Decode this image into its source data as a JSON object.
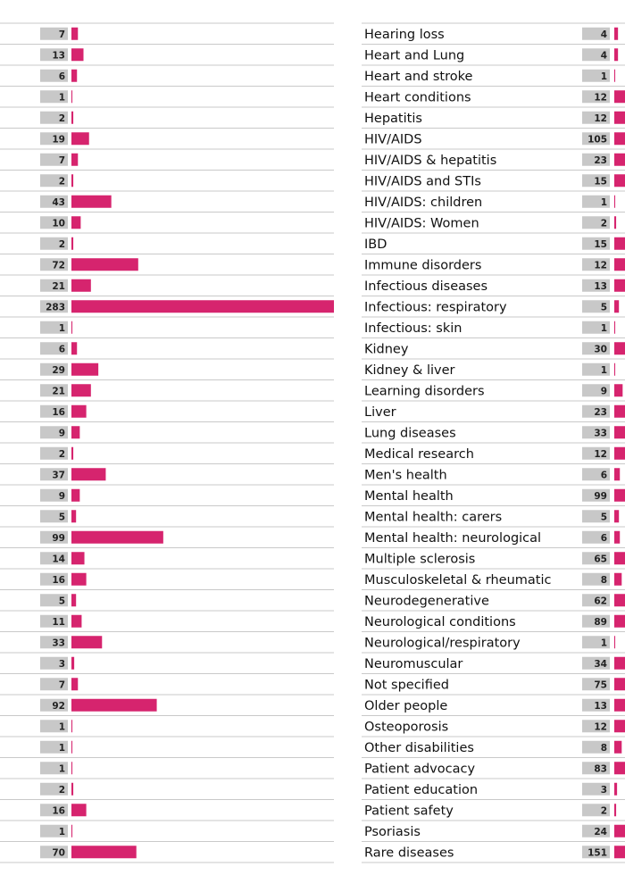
{
  "chart_data": [
    {
      "type": "bar",
      "orientation": "horizontal",
      "color": "#d6246e",
      "categories": [
        null,
        null,
        null,
        null,
        null,
        null,
        null,
        null,
        null,
        null,
        null,
        null,
        null,
        null,
        null,
        null,
        null,
        null,
        null,
        null,
        null,
        null,
        null,
        null,
        null,
        null,
        null,
        null,
        null,
        null,
        null,
        null,
        null,
        null,
        null,
        null,
        null,
        null,
        null,
        null
      ],
      "values": [
        7,
        13,
        6,
        1,
        2,
        19,
        7,
        2,
        43,
        10,
        2,
        72,
        21,
        283,
        1,
        6,
        29,
        21,
        16,
        9,
        2,
        37,
        9,
        5,
        99,
        14,
        16,
        5,
        11,
        33,
        3,
        7,
        92,
        1,
        1,
        1,
        2,
        16,
        1,
        70
      ],
      "xlim": [
        0,
        283
      ]
    },
    {
      "type": "bar",
      "orientation": "horizontal",
      "color": "#d6246e",
      "categories": [
        "Hearing loss",
        "Heart and Lung",
        "Heart and stroke",
        "Heart conditions",
        "Hepatitis",
        "HIV/AIDS",
        "HIV/AIDS & hepatitis",
        "HIV/AIDS and STIs",
        "HIV/AIDS: children",
        "HIV/AIDS: Women",
        "IBD",
        "Immune disorders",
        "Infectious diseases",
        "Infectious: respiratory",
        "Infectious: skin",
        "Kidney",
        "Kidney & liver",
        "Learning disorders",
        "Liver",
        "Lung diseases",
        "Medical research",
        "Men's health",
        "Mental health",
        "Mental health: carers",
        "Mental health: neurological",
        "Multiple sclerosis",
        "Musculoskeletal & rheumatic",
        "Neurodegenerative",
        "Neurological conditions",
        "Neurological/respiratory",
        "Neuromuscular",
        "Not specified",
        "Older people",
        "Osteoporosis",
        "Other disabilities",
        "Patient advocacy",
        "Patient education",
        "Patient safety",
        "Psoriasis",
        "Rare diseases"
      ],
      "values": [
        4,
        4,
        1,
        12,
        12,
        105,
        23,
        15,
        1,
        2,
        15,
        12,
        13,
        5,
        1,
        30,
        1,
        9,
        23,
        33,
        12,
        6,
        99,
        5,
        6,
        65,
        8,
        62,
        89,
        1,
        34,
        75,
        13,
        12,
        8,
        83,
        3,
        2,
        24,
        151
      ],
      "xlim": [
        0,
        283
      ]
    }
  ]
}
